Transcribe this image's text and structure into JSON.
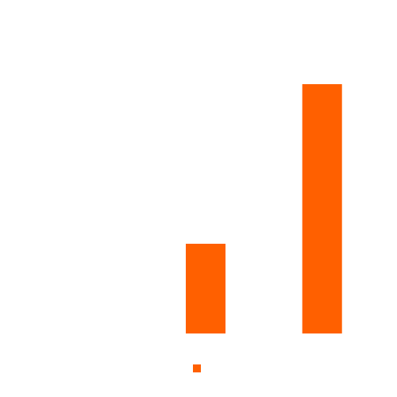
{
  "chart_data": {
    "type": "bar",
    "title": "",
    "xlabel": "",
    "ylabel": "",
    "categories": [
      "",
      "",
      ""
    ],
    "series": [
      {
        "color": "#ff6000",
        "values": [
          0,
          36,
          100
        ]
      }
    ],
    "ylim": [
      0,
      100
    ],
    "grid": false,
    "legend": {
      "position": "bottom"
    }
  }
}
